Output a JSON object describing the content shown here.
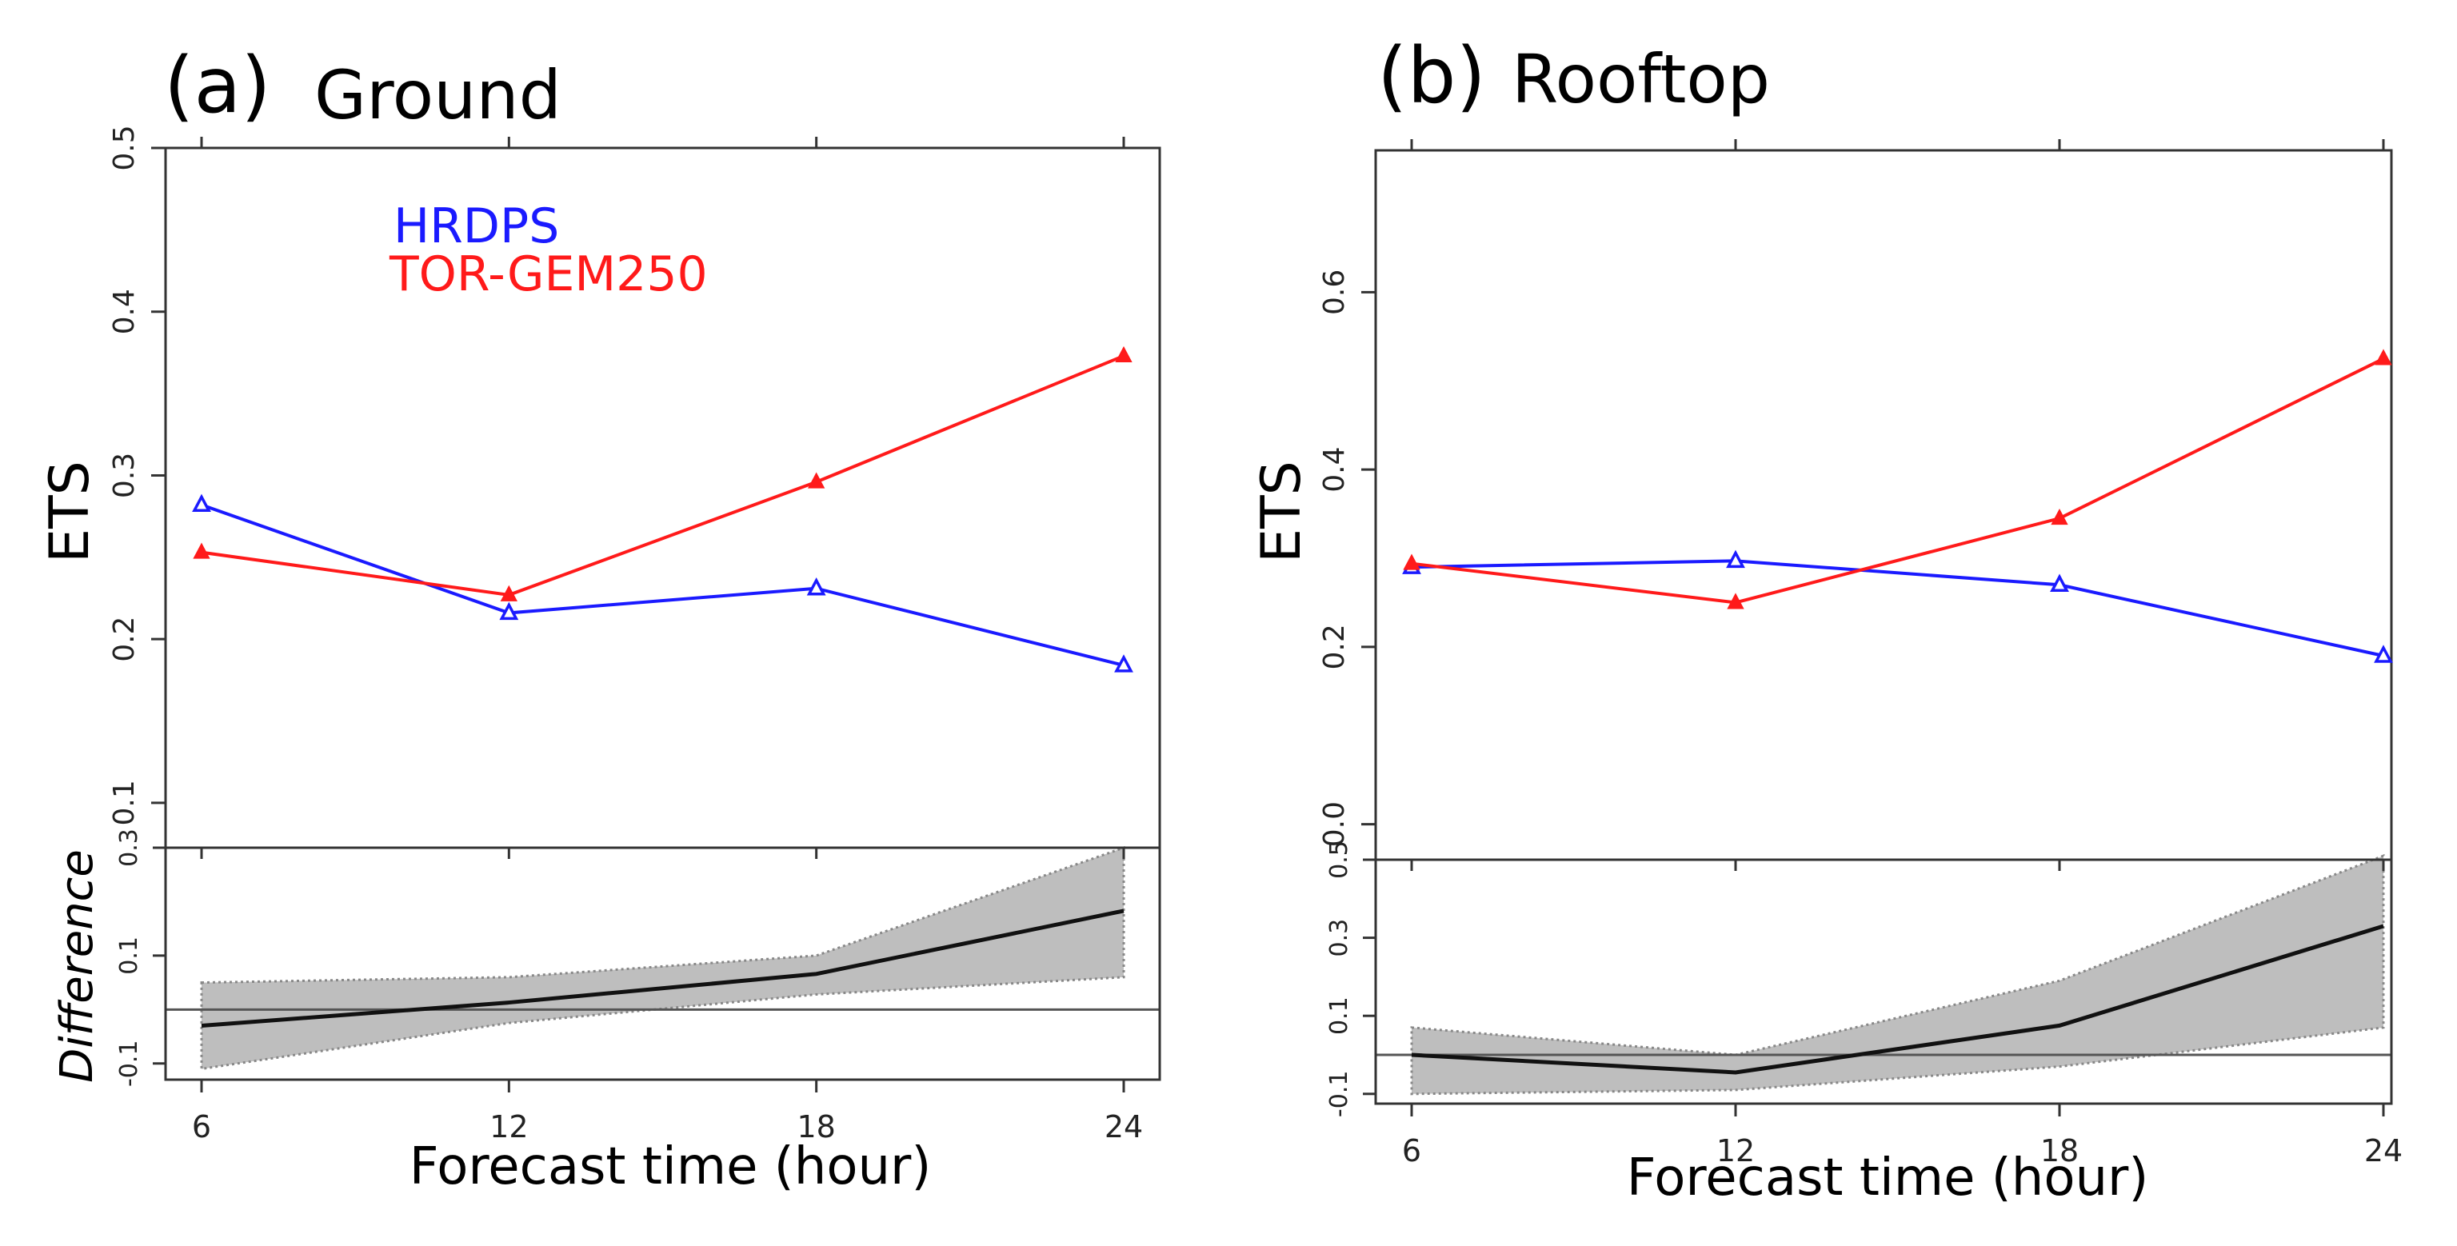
{
  "colors": {
    "hrdps": "#1a1aff",
    "tor": "#ff1a1a",
    "frame": "#333333",
    "band": "#bebebe",
    "band_edge": "#888888",
    "diff_line": "#111111"
  },
  "xlabel": "Forecast time (hour)",
  "chart_data": [
    {
      "type": "line",
      "panel_tag": "(a)",
      "title": "Ground",
      "ylabel": "ETS",
      "x": [
        6,
        12,
        18,
        24
      ],
      "x_ticks": [
        "6",
        "12",
        "18",
        "24"
      ],
      "ylim": [
        0.0726,
        0.5
      ],
      "y_ticks": [
        0.1,
        0.2,
        0.3,
        0.4,
        0.5
      ],
      "y_tick_labels": [
        "0.1",
        "0.2",
        "0.3",
        "0.4",
        "0.5"
      ],
      "legend": {
        "placement": "top-left",
        "entries": [
          "HRDPS",
          "TOR-GEM250"
        ]
      },
      "series": [
        {
          "name": "HRDPS",
          "color_key": "hrdps",
          "marker": "open-triangle",
          "values": [
            0.282,
            0.216,
            0.231,
            0.184
          ]
        },
        {
          "name": "TOR-GEM250",
          "color_key": "tor",
          "marker": "filled-triangle",
          "values": [
            0.253,
            0.227,
            0.296,
            0.373
          ]
        }
      ],
      "difference": {
        "ylabel": "Difference",
        "ylim": [
          -0.13,
          0.3
        ],
        "y_ticks": [
          -0.1,
          0.1,
          0.3
        ],
        "y_tick_labels": [
          "-0.1",
          "0.1",
          "0.3"
        ],
        "reference": 0.0,
        "values": [
          -0.03,
          0.013,
          0.066,
          0.183
        ],
        "lower": [
          -0.11,
          -0.025,
          0.028,
          0.06
        ],
        "upper": [
          0.05,
          0.06,
          0.1,
          0.3
        ]
      }
    },
    {
      "type": "line",
      "panel_tag": "(b)",
      "title": "Rooftop",
      "ylabel": "ETS",
      "x": [
        6,
        12,
        18,
        24
      ],
      "x_ticks": [
        "6",
        "12",
        "18",
        "24"
      ],
      "ylim": [
        -0.04,
        0.76
      ],
      "y_ticks": [
        0.0,
        0.2,
        0.4,
        0.6
      ],
      "y_tick_labels": [
        "0.0",
        "0.2",
        "0.4",
        "0.6"
      ],
      "legend": null,
      "series": [
        {
          "name": "HRDPS",
          "color_key": "hrdps",
          "marker": "open-triangle",
          "values": [
            0.29,
            0.297,
            0.27,
            0.19
          ]
        },
        {
          "name": "TOR-GEM250",
          "color_key": "tor",
          "marker": "filled-triangle",
          "values": [
            0.294,
            0.25,
            0.345,
            0.525
          ]
        }
      ],
      "difference": {
        "ylabel": "",
        "ylim": [
          -0.125,
          0.5
        ],
        "y_ticks": [
          -0.1,
          0.1,
          0.3,
          0.5
        ],
        "y_tick_labels": [
          "-0.1",
          "0.1",
          "0.3",
          "0.5"
        ],
        "reference": 0.0,
        "values": [
          0.0,
          -0.045,
          0.075,
          0.33
        ],
        "lower": [
          -0.1,
          -0.09,
          -0.03,
          0.07
        ],
        "upper": [
          0.07,
          0.0,
          0.19,
          0.51
        ]
      }
    }
  ]
}
